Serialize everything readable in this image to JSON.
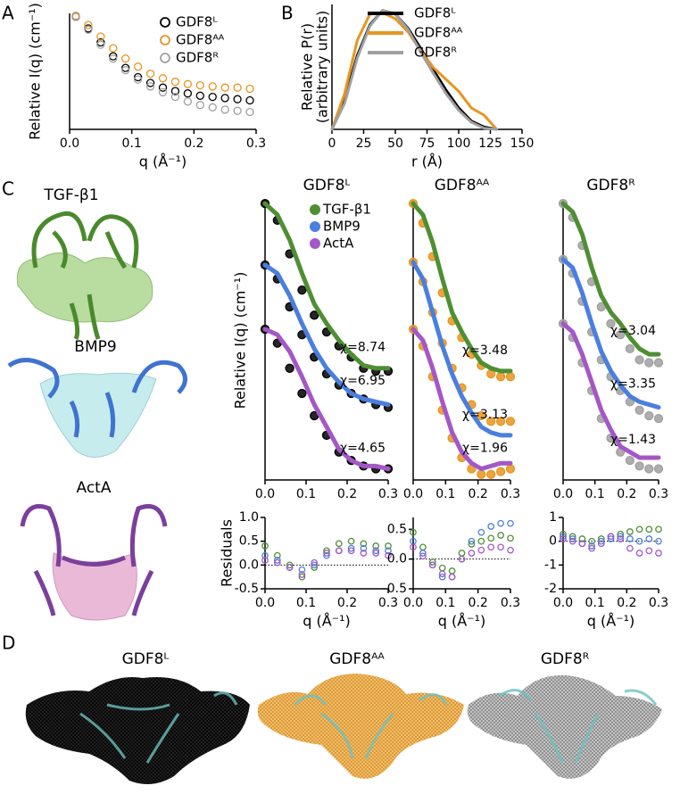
{
  "panel_labels": [
    "A",
    "B",
    "C",
    "D"
  ],
  "structures": {
    "titles": [
      "TGF-β1",
      "BMP9",
      "ActA"
    ]
  },
  "envelopes": {
    "titles": [
      "GDF8ᴸ",
      "GDF8ᴬᴬ",
      "GDF8ᴿ"
    ]
  },
  "chart_data": [
    {
      "type": "scatter",
      "xlabel": "q (Å⁻¹)",
      "ylabel": "Relative I(q) (cm⁻¹)",
      "legend": "top-right",
      "xlim": [
        0,
        0.3
      ],
      "xticks": [
        {
          "value": 0,
          "label": "0.0"
        },
        0.1,
        0.2,
        0.3
      ],
      "ylim": [
        0,
        1
      ],
      "x": [
        0.01,
        0.03,
        0.05,
        0.07,
        0.09,
        0.11,
        0.13,
        0.15,
        0.17,
        0.19,
        0.21,
        0.23,
        0.25,
        0.27,
        0.29
      ],
      "series": [
        {
          "name": "GDF8ᴸ",
          "color": "#000000",
          "marker": "open",
          "values": [
            0.97,
            0.87,
            0.75,
            0.63,
            0.53,
            0.45,
            0.4,
            0.36,
            0.33,
            0.31,
            0.29,
            0.28,
            0.27,
            0.26,
            0.25
          ]
        },
        {
          "name": "GDF8ᴬᴬ",
          "color": "#e8951f",
          "marker": "open",
          "values": [
            0.98,
            0.9,
            0.8,
            0.7,
            0.61,
            0.54,
            0.48,
            0.44,
            0.41,
            0.39,
            0.38,
            0.37,
            0.36,
            0.36,
            0.35
          ]
        },
        {
          "name": "GDF8ᴿ",
          "color": "#a0a0a0",
          "marker": "open",
          "values": [
            0.97,
            0.86,
            0.73,
            0.61,
            0.51,
            0.43,
            0.37,
            0.32,
            0.28,
            0.24,
            0.21,
            0.19,
            0.17,
            0.16,
            0.15
          ]
        }
      ]
    },
    {
      "type": "line",
      "xlabel": "r (Å)",
      "ylabel": [
        "Relative P(r)",
        "(arbitrary units)"
      ],
      "legend": "top-right",
      "xlim": [
        0,
        150
      ],
      "xticks": [
        0,
        25,
        50,
        75,
        100,
        125,
        150
      ],
      "ylim": [
        0,
        1.05
      ],
      "x": [
        0,
        10,
        20,
        30,
        40,
        50,
        60,
        70,
        80,
        90,
        100,
        110,
        120,
        130
      ],
      "series": [
        {
          "name": "GDF8ᴸ",
          "color": "#000000",
          "values": [
            0,
            0.25,
            0.62,
            0.88,
            1.0,
            0.97,
            0.85,
            0.68,
            0.5,
            0.33,
            0.18,
            0.07,
            0.02,
            0
          ]
        },
        {
          "name": "GDF8ᴬᴬ",
          "color": "#e8951f",
          "values": [
            0,
            0.3,
            0.75,
            0.97,
            0.98,
            0.93,
            0.82,
            0.66,
            0.52,
            0.42,
            0.32,
            0.18,
            0.12,
            0
          ]
        },
        {
          "name": "GDF8ᴿ",
          "color": "#a0a0a0",
          "values": [
            0,
            0.22,
            0.6,
            0.87,
            1.0,
            0.97,
            0.84,
            0.65,
            0.47,
            0.3,
            0.16,
            0.06,
            0.01,
            0
          ]
        }
      ]
    },
    {
      "type": "line",
      "title": "GDF8ᴸ",
      "ylabel": "Relative I(q) (cm⁻¹)",
      "legend": "top-right",
      "xlim": [
        0,
        0.3
      ],
      "xticks": [
        {
          "value": 0,
          "label": "0.0"
        },
        0.1,
        0.2,
        0.3
      ],
      "ylim": [
        0,
        1
      ],
      "x": [
        0,
        0.03,
        0.06,
        0.09,
        0.12,
        0.15,
        0.18,
        0.21,
        0.24,
        0.27,
        0.3
      ],
      "annotations": [
        "χ=8.74",
        "χ=6.95",
        "χ=4.65"
      ],
      "series": [
        {
          "color": "#000000",
          "marker": "filled",
          "values": [
            0.99,
            0.93,
            0.81,
            0.68,
            0.59,
            0.53,
            0.48,
            0.44,
            0.4,
            0.39,
            0.39
          ]
        },
        {
          "name": "TGF-β1",
          "color": "#4f8f33",
          "values": [
            0.99,
            0.95,
            0.86,
            0.74,
            0.63,
            0.56,
            0.5,
            0.45,
            0.41,
            0.4,
            0.4
          ]
        },
        {
          "color": "#000000",
          "marker": "filled",
          "values": [
            0.77,
            0.72,
            0.62,
            0.52,
            0.44,
            0.38,
            0.34,
            0.31,
            0.29,
            0.27,
            0.26
          ]
        },
        {
          "name": "BMP9",
          "color": "#4a7fe0",
          "values": [
            0.77,
            0.74,
            0.66,
            0.56,
            0.47,
            0.4,
            0.35,
            0.31,
            0.29,
            0.28,
            0.27
          ]
        },
        {
          "color": "#000000",
          "marker": "filled",
          "values": [
            0.54,
            0.49,
            0.4,
            0.31,
            0.23,
            0.16,
            0.1,
            0.07,
            0.05,
            0.04,
            0.04
          ]
        },
        {
          "name": "ActA",
          "color": "#a457c7",
          "values": [
            0.54,
            0.52,
            0.46,
            0.37,
            0.27,
            0.19,
            0.11,
            0.07,
            0.05,
            0.05,
            0.04
          ]
        }
      ]
    },
    {
      "type": "line",
      "title": "GDF8ᴬᴬ",
      "xlim": [
        0,
        0.3
      ],
      "xticks": [
        {
          "value": 0,
          "label": "0.0"
        },
        0.1,
        0.2,
        0.3
      ],
      "ylim": [
        0,
        1
      ],
      "x": [
        0,
        0.03,
        0.06,
        0.09,
        0.12,
        0.15,
        0.18,
        0.21,
        0.24,
        0.27,
        0.3
      ],
      "annotations": [
        "χ=3.48",
        "χ=3.13",
        "χ=1.96"
      ],
      "series": [
        {
          "color": "#e8951f",
          "marker": "filled",
          "values": [
            0.99,
            0.92,
            0.8,
            0.67,
            0.57,
            0.51,
            0.45,
            0.41,
            0.38,
            0.37,
            0.37
          ]
        },
        {
          "color": "#4f8f33",
          "values": [
            0.99,
            0.95,
            0.85,
            0.72,
            0.6,
            0.53,
            0.47,
            0.42,
            0.4,
            0.39,
            0.39
          ]
        },
        {
          "color": "#e8951f",
          "marker": "filled",
          "values": [
            0.78,
            0.71,
            0.6,
            0.49,
            0.4,
            0.33,
            0.27,
            0.23,
            0.21,
            0.21,
            0.21
          ]
        },
        {
          "color": "#4a7fe0",
          "values": [
            0.78,
            0.72,
            0.6,
            0.48,
            0.38,
            0.3,
            0.24,
            0.19,
            0.17,
            0.16,
            0.16
          ]
        },
        {
          "color": "#e8951f",
          "marker": "filled",
          "values": [
            0.54,
            0.48,
            0.37,
            0.25,
            0.15,
            0.08,
            0.04,
            0.02,
            0.02,
            0.03,
            0.04
          ]
        },
        {
          "color": "#a457c7",
          "values": [
            0.54,
            0.5,
            0.4,
            0.28,
            0.17,
            0.1,
            0.06,
            0.04,
            0.05,
            0.06,
            0.06
          ]
        }
      ]
    },
    {
      "type": "line",
      "title": "GDF8ᴿ",
      "xlim": [
        0,
        0.3
      ],
      "xticks": [
        {
          "value": 0,
          "label": "0.0"
        },
        0.1,
        0.2,
        0.3
      ],
      "ylim": [
        0,
        1
      ],
      "x": [
        0,
        0.03,
        0.06,
        0.09,
        0.12,
        0.15,
        0.18,
        0.21,
        0.24,
        0.27,
        0.3
      ],
      "annotations": [
        "χ=3.04",
        "χ=3.35",
        "χ=1.43"
      ],
      "series": [
        {
          "color": "#a0a0a0",
          "marker": "filled",
          "values": [
            0.99,
            0.94,
            0.84,
            0.71,
            0.62,
            0.56,
            0.52,
            0.47,
            0.43,
            0.42,
            0.42
          ]
        },
        {
          "color": "#4f8f33",
          "values": [
            0.99,
            0.96,
            0.88,
            0.76,
            0.66,
            0.6,
            0.56,
            0.51,
            0.47,
            0.45,
            0.45
          ]
        },
        {
          "color": "#a0a0a0",
          "marker": "filled",
          "values": [
            0.79,
            0.74,
            0.64,
            0.53,
            0.43,
            0.37,
            0.32,
            0.28,
            0.25,
            0.23,
            0.22
          ]
        },
        {
          "color": "#4a7fe0",
          "values": [
            0.79,
            0.76,
            0.67,
            0.56,
            0.46,
            0.39,
            0.34,
            0.3,
            0.28,
            0.27,
            0.26
          ]
        },
        {
          "color": "#a0a0a0",
          "marker": "filled",
          "values": [
            0.56,
            0.51,
            0.42,
            0.32,
            0.22,
            0.15,
            0.1,
            0.07,
            0.05,
            0.04,
            0.04
          ]
        },
        {
          "color": "#a457c7",
          "values": [
            0.56,
            0.53,
            0.45,
            0.35,
            0.25,
            0.18,
            0.12,
            0.1,
            0.08,
            0.08,
            0.08
          ]
        }
      ]
    },
    {
      "type": "scatter",
      "xlabel": "q (Å⁻¹)",
      "ylabel": "Residuals",
      "zeroline": true,
      "xlim": [
        0,
        0.3
      ],
      "xticks": [
        {
          "value": 0,
          "label": "0.0"
        },
        0.1,
        0.2,
        0.3
      ],
      "ylim": [
        -0.5,
        1.0
      ],
      "yticks": [
        {
          "value": 1.0,
          "label": "1.0"
        },
        0.5,
        {
          "value": 0,
          "label": "0.0"
        },
        -0.5
      ],
      "x": [
        0,
        0.03,
        0.06,
        0.09,
        0.12,
        0.15,
        0.18,
        0.21,
        0.24,
        0.27,
        0.3
      ],
      "series": [
        {
          "color": "#4f8f33",
          "marker": "open",
          "values": [
            0.4,
            0.2,
            0.0,
            -0.25,
            -0.05,
            0.3,
            0.45,
            0.5,
            0.45,
            0.4,
            0.4
          ]
        },
        {
          "color": "#4a7fe0",
          "marker": "open",
          "values": [
            0.2,
            0.1,
            -0.05,
            -0.1,
            0.0,
            0.2,
            0.3,
            0.35,
            0.35,
            0.3,
            0.3
          ]
        },
        {
          "color": "#a457c7",
          "marker": "open",
          "values": [
            0.1,
            0.05,
            -0.05,
            -0.2,
            0.05,
            0.25,
            0.3,
            0.3,
            0.25,
            0.25,
            0.2
          ]
        }
      ]
    },
    {
      "type": "scatter",
      "xlabel": "q (Å⁻¹)",
      "zeroline": true,
      "xlim": [
        0,
        0.3
      ],
      "xticks": [
        {
          "value": 0,
          "label": "0.0"
        },
        0.1,
        0.2,
        0.3
      ],
      "ylim": [
        -0.5,
        0.7
      ],
      "yticks": [
        0.5,
        {
          "value": 0,
          "label": "0.0"
        },
        -0.5
      ],
      "x": [
        0,
        0.03,
        0.06,
        0.09,
        0.12,
        0.15,
        0.18,
        0.21,
        0.24,
        0.27,
        0.3
      ],
      "series": [
        {
          "color": "#4f8f33",
          "marker": "open",
          "values": [
            0.45,
            0.2,
            -0.05,
            -0.15,
            -0.2,
            0.1,
            0.25,
            0.3,
            0.35,
            0.4,
            0.35
          ]
        },
        {
          "color": "#4a7fe0",
          "marker": "open",
          "values": [
            0.3,
            0.1,
            -0.1,
            -0.3,
            -0.3,
            0.0,
            0.3,
            0.45,
            0.55,
            0.6,
            0.6
          ]
        },
        {
          "color": "#a457c7",
          "marker": "open",
          "values": [
            0.2,
            0.05,
            -0.1,
            -0.25,
            -0.3,
            0.0,
            0.1,
            0.15,
            0.2,
            0.2,
            0.15
          ]
        }
      ]
    },
    {
      "type": "scatter",
      "xlabel": "q (Å⁻¹)",
      "zeroline": true,
      "xlim": [
        0,
        0.3
      ],
      "xticks": [
        {
          "value": 0,
          "label": "0.0"
        },
        0.1,
        0.2,
        0.3
      ],
      "ylim": [
        -2,
        1
      ],
      "yticks": [
        1,
        0,
        -1,
        -2
      ],
      "x": [
        0,
        0.03,
        0.06,
        0.09,
        0.12,
        0.15,
        0.18,
        0.21,
        0.24,
        0.27,
        0.3
      ],
      "series": [
        {
          "color": "#4f8f33",
          "marker": "open",
          "values": [
            0.3,
            0.2,
            0.1,
            0,
            0.1,
            0.2,
            0.3,
            0.4,
            0.5,
            0.5,
            0.5
          ]
        },
        {
          "color": "#4a7fe0",
          "marker": "open",
          "values": [
            0.2,
            0.1,
            -0.1,
            -0.2,
            0,
            0.1,
            0.2,
            0.1,
            0,
            0.1,
            0
          ]
        },
        {
          "color": "#a457c7",
          "marker": "open",
          "values": [
            0.1,
            0,
            -0.1,
            -0.3,
            -0.1,
            0.2,
            0.1,
            -0.3,
            -0.5,
            -0.4,
            -0.5
          ]
        }
      ]
    }
  ]
}
